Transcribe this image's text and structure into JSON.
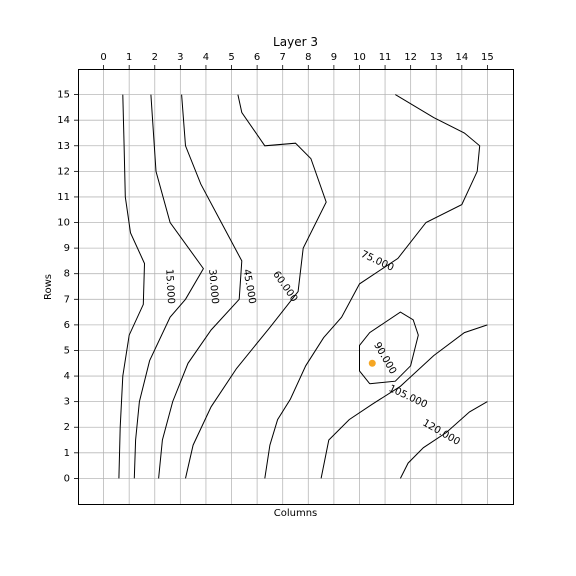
{
  "chart_data": {
    "type": "heatmap",
    "title": "Layer 3",
    "xlabel": "Columns",
    "ylabel": "Rows",
    "x_ticks": [
      "0",
      "1",
      "2",
      "3",
      "4",
      "5",
      "6",
      "7",
      "8",
      "9",
      "10",
      "11",
      "12",
      "13",
      "14",
      "15"
    ],
    "y_ticks": [
      "0",
      "1",
      "2",
      "3",
      "4",
      "5",
      "6",
      "7",
      "8",
      "9",
      "10",
      "11",
      "12",
      "13",
      "14",
      "15"
    ],
    "xlim": [
      -1,
      16
    ],
    "ylim": [
      16,
      -1
    ],
    "x_axis_position": "top",
    "grid": true,
    "colormap": "cool",
    "colormap_colors": [
      "#00ffff",
      "#ff00ff"
    ],
    "contour_line_color": "#000000",
    "contour_levels": [
      15,
      30,
      45,
      60,
      75,
      90,
      105,
      120
    ],
    "contour_labels": [
      "15.000",
      "30.000",
      "45.000",
      "60.000",
      "75.000",
      "90.000",
      "105.000",
      "120.000"
    ],
    "contours": [
      {
        "level": 15,
        "label": "15.000",
        "points": [
          [
            0.6,
            0
          ],
          [
            0.65,
            2
          ],
          [
            0.75,
            4
          ],
          [
            1.0,
            5.6
          ],
          [
            1.55,
            6.8
          ],
          [
            1.6,
            8.4
          ],
          [
            1.05,
            9.6
          ],
          [
            0.85,
            11
          ],
          [
            0.8,
            13
          ],
          [
            0.75,
            15
          ]
        ]
      },
      {
        "level": 30,
        "label": "30.000",
        "points": [
          [
            1.2,
            0
          ],
          [
            1.25,
            1.5
          ],
          [
            1.4,
            3
          ],
          [
            1.8,
            4.6
          ],
          [
            2.6,
            6.3
          ],
          [
            3.2,
            7.0
          ],
          [
            3.9,
            8.2
          ],
          [
            2.6,
            10.0
          ],
          [
            2.05,
            12
          ],
          [
            1.85,
            15
          ]
        ]
      },
      {
        "level": 45,
        "label": "45.000",
        "points": [
          [
            2.15,
            0
          ],
          [
            2.3,
            1.5
          ],
          [
            2.7,
            3
          ],
          [
            3.3,
            4.5
          ],
          [
            4.2,
            5.8
          ],
          [
            5.3,
            7.0
          ],
          [
            5.4,
            8.5
          ],
          [
            4.6,
            10
          ],
          [
            3.8,
            11.5
          ],
          [
            3.2,
            13
          ],
          [
            3.05,
            15
          ]
        ]
      },
      {
        "level": 60,
        "label": "60.000",
        "points": [
          [
            3.2,
            0
          ],
          [
            3.5,
            1.3
          ],
          [
            4.2,
            2.8
          ],
          [
            5.2,
            4.3
          ],
          [
            6.5,
            5.9
          ],
          [
            7.6,
            7.3
          ],
          [
            7.8,
            9.0
          ],
          [
            8.7,
            10.8
          ],
          [
            8.1,
            12.5
          ],
          [
            7.5,
            13.1
          ],
          [
            6.3,
            13.0
          ],
          [
            5.4,
            14.3
          ],
          [
            5.25,
            15
          ]
        ]
      },
      {
        "level": 75,
        "label": "75.000",
        "points": [
          [
            6.3,
            0
          ],
          [
            6.5,
            1.3
          ],
          [
            6.8,
            2.3
          ],
          [
            7.3,
            3.1
          ],
          [
            7.9,
            4.4
          ],
          [
            8.6,
            5.5
          ],
          [
            9.3,
            6.3
          ],
          [
            10.0,
            7.6
          ],
          [
            11.5,
            8.6
          ],
          [
            12.6,
            10.0
          ],
          [
            14.0,
            10.7
          ],
          [
            14.6,
            12.0
          ],
          [
            14.7,
            13.0
          ],
          [
            14.1,
            13.5
          ],
          [
            12.9,
            14.1
          ],
          [
            11.4,
            15
          ]
        ]
      },
      {
        "level": 90,
        "label": "90.000",
        "points": [
          [
            8.5,
            0
          ],
          [
            8.8,
            1.5
          ],
          [
            9.6,
            2.3
          ],
          [
            10.5,
            2.9
          ],
          [
            11.6,
            3.6
          ],
          [
            12.9,
            4.8
          ],
          [
            14.1,
            5.7
          ],
          [
            15,
            6.0
          ]
        ]
      },
      {
        "level": 90,
        "label": "",
        "points": [
          [
            10.4,
            3.7
          ],
          [
            10.0,
            4.2
          ],
          [
            10.0,
            5.2
          ],
          [
            10.4,
            5.7
          ],
          [
            11.6,
            6.5
          ],
          [
            12.1,
            6.2
          ],
          [
            12.3,
            5.6
          ],
          [
            12.0,
            4.4
          ],
          [
            11.4,
            3.8
          ],
          [
            10.4,
            3.7
          ]
        ]
      },
      {
        "level": 105,
        "label": "105.000",
        "points": [
          [
            11.6,
            0
          ],
          [
            11.9,
            0.6
          ],
          [
            12.5,
            1.2
          ],
          [
            13.4,
            1.8
          ],
          [
            14.3,
            2.6
          ],
          [
            15,
            3.0
          ]
        ]
      }
    ],
    "contour_label_anchors": [
      {
        "text": "15.000",
        "x": 2.6,
        "y": 7.5,
        "angle": 87
      },
      {
        "text": "30.000",
        "x": 4.3,
        "y": 7.5,
        "angle": 85
      },
      {
        "text": "45.000",
        "x": 5.7,
        "y": 7.5,
        "angle": 80
      },
      {
        "text": "60.000",
        "x": 7.1,
        "y": 7.5,
        "angle": 55
      },
      {
        "text": "75.000",
        "x": 10.7,
        "y": 8.5,
        "angle": 25
      },
      {
        "text": "90.000",
        "x": 11.0,
        "y": 4.7,
        "angle": 60
      },
      {
        "text": "105.000",
        "x": 11.9,
        "y": 3.2,
        "angle": 25
      },
      {
        "text": "120.000",
        "x": 13.2,
        "y": 1.8,
        "angle": 30
      }
    ],
    "marker": {
      "x": 10.5,
      "y": 4.5,
      "color": "#f5a623"
    }
  }
}
